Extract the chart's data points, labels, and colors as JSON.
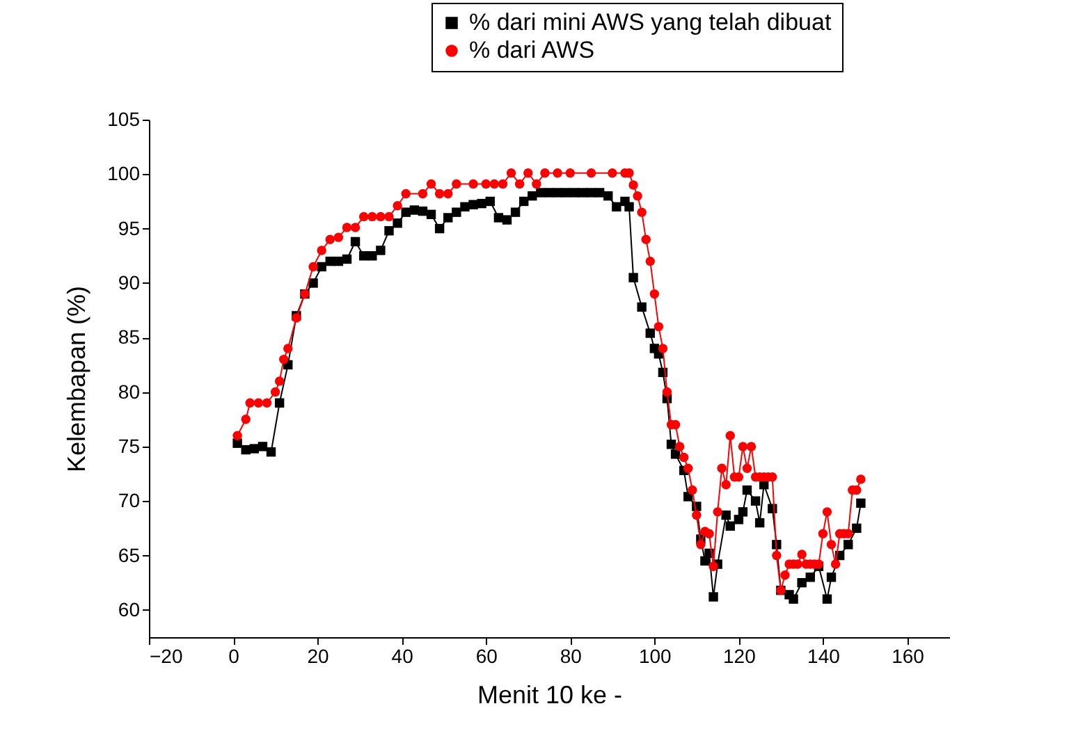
{
  "chart_data": {
    "type": "line",
    "xlabel": "Menit 10 ke -",
    "ylabel": "Kelembapan (%)",
    "xlim": [
      -20,
      170
    ],
    "ylim": [
      57.5,
      105
    ],
    "xticks": [
      -20,
      0,
      20,
      40,
      60,
      80,
      100,
      120,
      140,
      160
    ],
    "yticks": [
      60,
      65,
      70,
      75,
      80,
      85,
      90,
      95,
      100,
      105
    ],
    "grid": false,
    "legend": "top right",
    "series": [
      {
        "name": "% dari mini AWS yang telah dibuat",
        "color": "#000000",
        "marker": "square",
        "line_style": "solid",
        "x": [
          1,
          3,
          5,
          7,
          9,
          11,
          13,
          15,
          17,
          19,
          21,
          23,
          25,
          27,
          29,
          31,
          33,
          35,
          37,
          39,
          41,
          43,
          45,
          47,
          49,
          51,
          53,
          55,
          57,
          59,
          61,
          63,
          65,
          67,
          69,
          71,
          73,
          75,
          77,
          79,
          81,
          83,
          85,
          87,
          89,
          91,
          93,
          94,
          95,
          97,
          99,
          100,
          101,
          102,
          103,
          104,
          105,
          107,
          108,
          110,
          111,
          112,
          113,
          114,
          115,
          117,
          118,
          120,
          121,
          122,
          124,
          125,
          126,
          128,
          129,
          130,
          132,
          133,
          135,
          137,
          139,
          141,
          142,
          144,
          146,
          148,
          149
        ],
        "values": [
          75.3,
          74.7,
          74.8,
          75.0,
          74.5,
          79,
          82.5,
          87,
          89,
          90,
          91.5,
          92,
          92,
          92.2,
          93.8,
          92.5,
          92.5,
          93,
          94.8,
          95.5,
          96.5,
          96.7,
          96.6,
          96.3,
          95,
          96,
          96.5,
          97,
          97.2,
          97.3,
          97.5,
          96,
          95.8,
          96.5,
          97.5,
          98,
          98.3,
          98.3,
          98.3,
          98.3,
          98.3,
          98.3,
          98.3,
          98.3,
          98,
          97,
          97.5,
          97,
          90.5,
          87.8,
          85.4,
          84,
          83.5,
          81.8,
          79.4,
          75.2,
          74.3,
          72.8,
          70.4,
          69.5,
          66.5,
          64.5,
          65.2,
          61.2,
          64.2,
          68.7,
          67.7,
          68.3,
          69,
          71,
          70,
          68,
          71.5,
          69.3,
          66,
          61.8,
          61.4,
          61,
          62.5,
          63,
          64,
          61,
          63,
          65,
          66,
          67.5,
          69.8
        ]
      },
      {
        "name": "% dari AWS",
        "color": "#ff0000",
        "marker": "circle",
        "line_style": "solid",
        "x": [
          1,
          3,
          4,
          6,
          8,
          10,
          11,
          12,
          13,
          15,
          17,
          19,
          21,
          23,
          25,
          27,
          29,
          31,
          33,
          35,
          37,
          39,
          41,
          45,
          47,
          49,
          51,
          53,
          57,
          60,
          62,
          64,
          66,
          68,
          70,
          72,
          74,
          77,
          80,
          85,
          90,
          93,
          94,
          95,
          96,
          97,
          98,
          99,
          100,
          101,
          102,
          103,
          104,
          105,
          106,
          107,
          108,
          109,
          110,
          111,
          112,
          113,
          114,
          115,
          116,
          117,
          118,
          119,
          120,
          121,
          122,
          123,
          124,
          125,
          126,
          127,
          128,
          129,
          130,
          131,
          132,
          133,
          134,
          135,
          136,
          137,
          138,
          139,
          140,
          141,
          142,
          143,
          144,
          145,
          146,
          147,
          148,
          149
        ],
        "values": [
          76,
          77.5,
          79,
          79,
          79,
          80,
          81,
          83,
          84,
          86.8,
          89,
          91.5,
          93,
          94,
          94.2,
          95.1,
          95.1,
          96.1,
          96.1,
          96.1,
          96.1,
          97.1,
          98.2,
          98.2,
          99.1,
          98.2,
          98.2,
          99.1,
          99.1,
          99.1,
          99.1,
          99.1,
          100.1,
          99.1,
          100.1,
          99.1,
          100.1,
          100.1,
          100.1,
          100.1,
          100.1,
          100.1,
          100.1,
          99,
          98,
          96.5,
          94,
          92,
          89,
          86,
          84,
          80,
          77,
          77,
          75,
          74,
          73,
          71,
          68.7,
          66,
          67.2,
          67,
          64,
          69,
          73,
          71.5,
          76,
          72.2,
          72.2,
          75,
          73,
          75,
          72.2,
          72.2,
          72.2,
          72.2,
          72.2,
          65,
          61.8,
          63.2,
          64.2,
          64.2,
          64.2,
          65.1,
          64.2,
          64.2,
          64.2,
          64.2,
          67,
          69,
          66,
          64.2,
          67,
          67,
          67,
          71,
          71,
          72
        ]
      }
    ]
  }
}
